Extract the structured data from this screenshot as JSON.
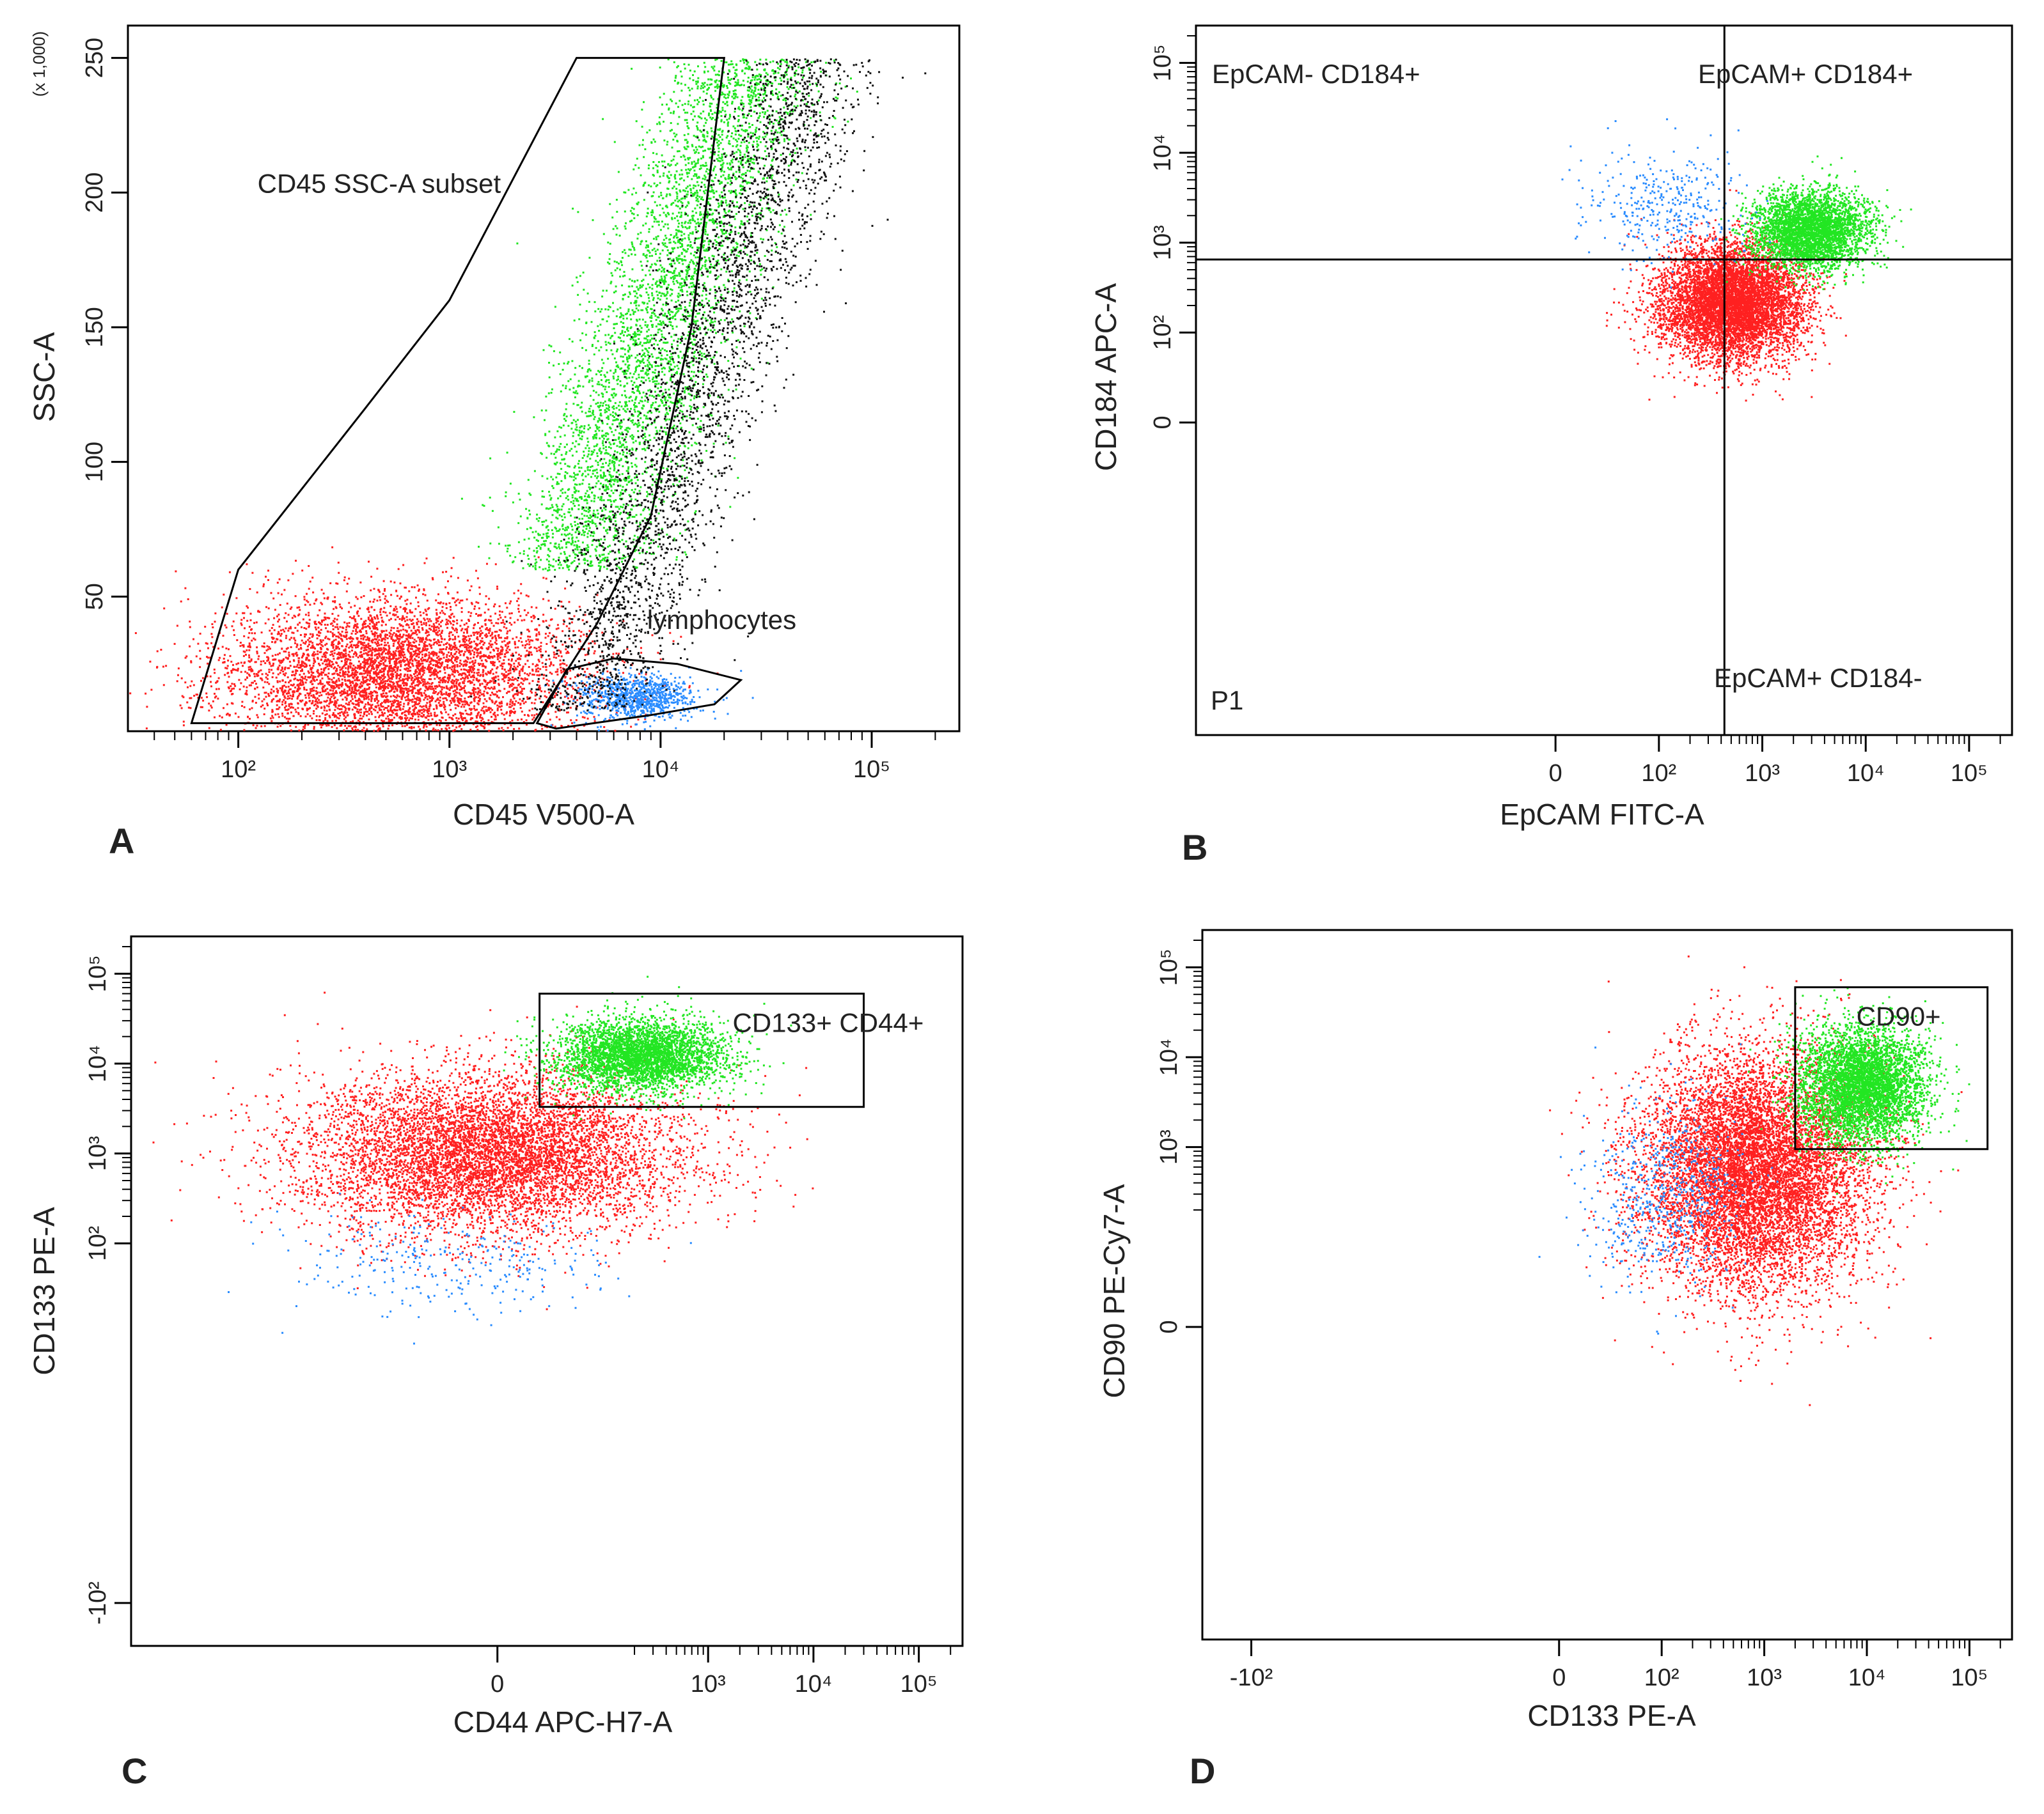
{
  "figure": {
    "title": ""
  },
  "colors": {
    "red": "#ff2020",
    "green": "#22e622",
    "blue": "#2a8cff",
    "black": "#111111",
    "axis": "#000000",
    "text": "#222222"
  },
  "chart_data": [
    {
      "panel": "A",
      "type": "scatter",
      "xlabel": "CD45 V500-A",
      "ylabel": "SSC-A",
      "y_scale_note": "(x 1,000)",
      "x_scale": "log",
      "xlim": [
        30,
        260000
      ],
      "y_scale": "linear",
      "ylim": [
        0,
        262
      ],
      "x_ticks": [
        {
          "v": 100,
          "label": "10²"
        },
        {
          "v": 1000,
          "label": "10³"
        },
        {
          "v": 10000,
          "label": "10⁴"
        },
        {
          "v": 100000,
          "label": "10⁵"
        }
      ],
      "y_ticks": [
        {
          "v": 50,
          "label": "50"
        },
        {
          "v": 100,
          "label": "100"
        },
        {
          "v": 150,
          "label": "150"
        },
        {
          "v": 200,
          "label": "200"
        },
        {
          "v": 250,
          "label": "250"
        }
      ],
      "annotations": [
        {
          "text": "CD45 SSC-A subset",
          "x": 100,
          "y": 200
        },
        {
          "text": "lymphocytes",
          "x": 7000,
          "y": 38
        }
      ],
      "gates": [
        {
          "name": "CD45 SSC-A subset",
          "points": [
            [
              60,
              3
            ],
            [
              100,
              60
            ],
            [
              400,
              120
            ],
            [
              1000,
              160
            ],
            [
              4000,
              250
            ],
            [
              20000,
              250
            ],
            [
              14000,
              150
            ],
            [
              9000,
              80
            ],
            [
              5000,
              40
            ],
            [
              2500,
              3
            ]
          ]
        },
        {
          "name": "lymphocytes",
          "points": [
            [
              2600,
              3
            ],
            [
              3600,
              23
            ],
            [
              6000,
              27
            ],
            [
              12000,
              25
            ],
            [
              24000,
              19
            ],
            [
              18000,
              10
            ],
            [
              9000,
              6
            ],
            [
              3200,
              1
            ]
          ]
        }
      ],
      "series": [
        {
          "name": "green",
          "color": "green",
          "count": 4200,
          "model": "band",
          "x_log_center": 3.75,
          "x_log_sd": 0.18,
          "y_range": [
            60,
            250
          ],
          "slope_log_per_unit": 0.0045
        },
        {
          "name": "red",
          "color": "red",
          "count": 5500,
          "model": "gauss",
          "x_log_center": 2.75,
          "x_log_sd": 0.42,
          "y_center": 22,
          "y_sd": 14
        },
        {
          "name": "blue",
          "color": "blue",
          "count": 900,
          "model": "gauss",
          "x_log_center": 3.88,
          "x_log_sd": 0.14,
          "y_center": 13,
          "y_sd": 4
        },
        {
          "name": "black",
          "color": "black",
          "count": 3000,
          "model": "band",
          "x_log_center": 4.05,
          "x_log_sd": 0.16,
          "y_range": [
            8,
            250
          ],
          "slope_log_per_unit": 0.0045
        }
      ]
    },
    {
      "panel": "B",
      "type": "scatter",
      "xlabel": "EpCAM FITC-A",
      "ylabel": "CD184 APC-A",
      "x_scale": "biex",
      "xlim": [
        -300,
        260000
      ],
      "y_scale": "biex",
      "ylim": [
        -300,
        260000
      ],
      "x_ticks": [
        {
          "v": 0,
          "label": "0"
        },
        {
          "v": 100,
          "label": "10²"
        },
        {
          "v": 1000,
          "label": "10³"
        },
        {
          "v": 10000,
          "label": "10⁴"
        },
        {
          "v": 100000,
          "label": "10⁵"
        }
      ],
      "y_ticks": [
        {
          "v": 0,
          "label": "0"
        },
        {
          "v": 100,
          "label": "10²"
        },
        {
          "v": 1000,
          "label": "10³"
        },
        {
          "v": 10000,
          "label": "10⁴"
        },
        {
          "v": 100000,
          "label": "10⁵"
        }
      ],
      "quadrant_split": {
        "x": 430,
        "y": 650
      },
      "quadrant_labels": [
        {
          "text": "EpCAM- CD184+",
          "pos": "top-left"
        },
        {
          "text": "EpCAM+ CD184+",
          "pos": "top-right"
        },
        {
          "text": "EpCAM+ CD184-",
          "pos": "bottom-right"
        }
      ],
      "gate_label": "P1",
      "series": [
        {
          "name": "red",
          "color": "red",
          "count": 6500,
          "model": "gauss",
          "x_log_center": 2.7,
          "x_log_sd": 0.35,
          "y_log_center": 2.35,
          "y_log_sd": 0.32
        },
        {
          "name": "green",
          "color": "green",
          "count": 3500,
          "model": "gauss",
          "x_log_center": 3.45,
          "x_log_sd": 0.28,
          "y_log_center": 3.15,
          "y_log_sd": 0.22
        },
        {
          "name": "blue",
          "color": "blue",
          "count": 350,
          "model": "gauss",
          "x_log_center": 2.0,
          "x_log_sd": 0.4,
          "y_log_center": 3.4,
          "y_log_sd": 0.3
        }
      ]
    },
    {
      "panel": "C",
      "type": "scatter",
      "xlabel": "CD44 APC-H7-A",
      "ylabel": "CD133 PE-A",
      "x_scale": "biex",
      "xlim": [
        -300,
        260000
      ],
      "y_scale": "biex",
      "ylim": [
        -300,
        260000
      ],
      "x_ticks": [
        {
          "v": 0,
          "label": "0"
        },
        {
          "v": 1000,
          "label": "10³"
        },
        {
          "v": 10000,
          "label": "10⁴"
        },
        {
          "v": 100000,
          "label": "10⁵"
        }
      ],
      "y_ticks": [
        {
          "v": -100,
          "label": "-10²"
        },
        {
          "v": 100,
          "label": "10²"
        },
        {
          "v": 1000,
          "label": "10³"
        },
        {
          "v": 10000,
          "label": "10⁴"
        },
        {
          "v": 100000,
          "label": "10⁵"
        }
      ],
      "gate_box": {
        "name": "CD133+ CD44+",
        "x": [
          40,
          30000
        ],
        "y": [
          3300,
          60000
        ]
      },
      "series": [
        {
          "name": "red",
          "color": "red",
          "count": 7000,
          "model": "gauss",
          "x_log_center": 0.9,
          "x_log_sd": 0.9,
          "y_log_center": 3.0,
          "y_log_sd": 0.45
        },
        {
          "name": "green",
          "color": "green",
          "count": 3500,
          "model": "gauss",
          "x_log_center": 2.35,
          "x_log_sd": 0.4,
          "y_log_center": 4.1,
          "y_log_sd": 0.2
        },
        {
          "name": "blue",
          "color": "blue",
          "count": 300,
          "model": "gauss",
          "x_log_center": 0.5,
          "x_log_sd": 0.8,
          "y_log_center": 1.8,
          "y_log_sd": 0.3
        }
      ]
    },
    {
      "panel": "D",
      "type": "scatter",
      "xlabel": "CD133 PE-A",
      "ylabel": "CD90 PE-Cy7-A",
      "x_scale": "biex",
      "xlim": [
        -300,
        260000
      ],
      "y_scale": "biex",
      "ylim": [
        -300,
        260000
      ],
      "x_ticks": [
        {
          "v": -100,
          "label": "-10²"
        },
        {
          "v": 0,
          "label": "0"
        },
        {
          "v": 100,
          "label": "10²"
        },
        {
          "v": 1000,
          "label": "10³"
        },
        {
          "v": 10000,
          "label": "10⁴"
        },
        {
          "v": 100000,
          "label": "10⁵"
        }
      ],
      "y_ticks": [
        {
          "v": 0,
          "label": "0"
        },
        {
          "v": 1000,
          "label": "10³"
        },
        {
          "v": 10000,
          "label": "10⁴"
        },
        {
          "v": 100000,
          "label": "10⁵"
        }
      ],
      "gate_box": {
        "name": "CD90+",
        "x": [
          2000,
          150000
        ],
        "y": [
          950,
          60000
        ]
      },
      "series": [
        {
          "name": "red",
          "color": "red",
          "count": 9000,
          "model": "gauss",
          "x_log_center": 2.9,
          "x_log_sd": 0.55,
          "y_log_center": 2.75,
          "y_log_sd": 0.65
        },
        {
          "name": "green",
          "color": "green",
          "count": 4500,
          "model": "gauss",
          "x_log_center": 3.95,
          "x_log_sd": 0.3,
          "y_log_center": 3.7,
          "y_log_sd": 0.32
        },
        {
          "name": "blue",
          "color": "blue",
          "count": 600,
          "model": "gauss",
          "x_log_center": 2.05,
          "x_log_sd": 0.35,
          "y_log_center": 2.5,
          "y_log_sd": 0.5
        }
      ]
    }
  ]
}
